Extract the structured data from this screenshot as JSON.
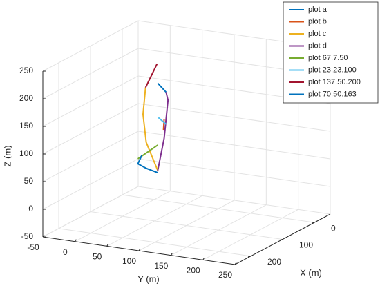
{
  "chart_data": {
    "type": "line3d",
    "xlabel": "X (m)",
    "ylabel": "Y (m)",
    "zlabel": "Z (m)",
    "xlim": [
      -50,
      250
    ],
    "ylim": [
      -50,
      250
    ],
    "zlim": [
      -50,
      250
    ],
    "xticks": [
      0,
      100,
      200
    ],
    "yticks": [
      -50,
      0,
      50,
      100,
      150,
      200,
      250
    ],
    "zticks": [
      -50,
      0,
      50,
      100,
      150,
      200,
      250
    ],
    "grid": true,
    "legend": "northeast",
    "series": [
      {
        "name": "plot a",
        "color": "#0072bd",
        "x": [
          100,
          100
        ],
        "y": [
          55,
          68
        ],
        "z": [
          200,
          186
        ]
      },
      {
        "name": "plot b",
        "color": "#d95319",
        "x": [
          100,
          100
        ],
        "y": [
          65,
          64
        ],
        "z": [
          137,
          117
        ]
      },
      {
        "name": "plot c",
        "color": "#edb120",
        "x": [
          100,
          100,
          100,
          100
        ],
        "y": [
          36,
          32,
          37,
          55
        ],
        "z": [
          189,
          140,
          90,
          42
        ]
      },
      {
        "name": "plot d",
        "color": "#7e2f8e",
        "x": [
          100,
          100,
          100,
          100
        ],
        "y": [
          68,
          71,
          65,
          55
        ],
        "z": [
          186,
          172,
          102,
          42
        ]
      },
      {
        "name": "plot 67.7.50",
        "color": "#77ac30",
        "x": [
          100,
          100
        ],
        "y": [
          24,
          55
        ],
        "z": [
          58,
          88
        ]
      },
      {
        "name": "plot 23.23.100",
        "color": "#4dbeee",
        "x": [
          100,
          100
        ],
        "y": [
          56,
          68
        ],
        "z": [
          138,
          128
        ]
      },
      {
        "name": "plot 137.50.200",
        "color": "#a2142f",
        "x": [
          100,
          100
        ],
        "y": [
          36,
          54
        ],
        "z": [
          189,
          235
        ]
      },
      {
        "name": "plot 70.50.163",
        "color": "#0072bd",
        "x": [
          100,
          100,
          100,
          100
        ],
        "y": [
          30,
          24,
          37,
          55
        ],
        "z": [
          65,
          49,
          43,
          38
        ]
      }
    ]
  }
}
